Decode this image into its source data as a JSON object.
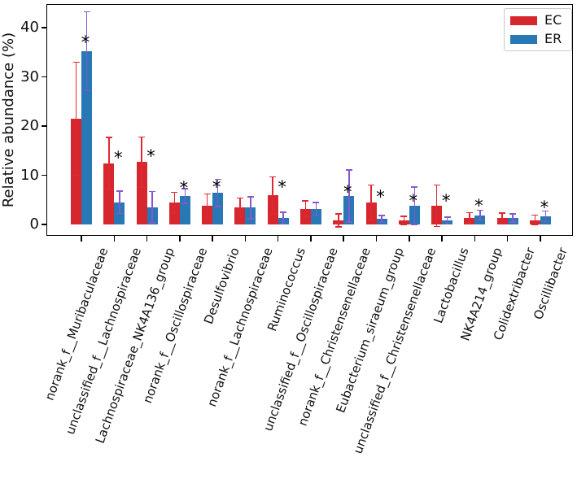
{
  "chart_data": {
    "type": "bar",
    "title": "",
    "xlabel": "",
    "ylabel": "Relative abundance (%)",
    "ylim": [
      -2.3,
      44.8
    ],
    "yticks": [
      0,
      10,
      20,
      30,
      40
    ],
    "grid": false,
    "legend_position": "upper right",
    "significance_marker": "*",
    "categories": [
      "norank_f__Muribaculaceae",
      "unclassified_f__Lachnospiraceae",
      "Lachnospiraceae_NK4A136_group",
      "norank_f__Oscillospiraceae",
      "Desulfovibrio",
      "norank_f__Lachnospiraceae",
      "Ruminococcus",
      "unclassified_f__Oscillospiraceae",
      "norank_f__Christensenellaceae",
      "Eubacterium_siraeum_group",
      "unclassified_f__Christensenellaceae",
      "Lactobacillus",
      "NK4A214_group",
      "Colidextribacter",
      "Oscillibacter"
    ],
    "series": [
      {
        "name": "EC",
        "color": "#d7272e",
        "errorbar_color": "#e02832",
        "values": [
          21.5,
          12.4,
          12.7,
          4.4,
          3.8,
          3.5,
          5.9,
          3.2,
          0.8,
          4.4,
          0.8,
          3.8,
          1.3,
          1.3,
          0.9
        ],
        "errors": [
          11.5,
          5.3,
          5.1,
          2.1,
          2.4,
          1.9,
          3.8,
          1.6,
          1.3,
          3.6,
          0.9,
          4.2,
          1.1,
          1.0,
          1.0
        ]
      },
      {
        "name": "ER",
        "color": "#2878b5",
        "errorbar_color": "#8757d1",
        "values": [
          35.2,
          4.5,
          3.5,
          5.8,
          6.4,
          3.4,
          1.3,
          3.2,
          5.8,
          1.1,
          3.8,
          0.8,
          1.9,
          1.3,
          1.65
        ],
        "errors": [
          8.0,
          2.3,
          3.2,
          1.5,
          2.8,
          2.2,
          1.2,
          1.3,
          5.3,
          0.7,
          3.8,
          0.7,
          1.0,
          0.8,
          1.1
        ]
      }
    ],
    "significant": [
      true,
      true,
      true,
      true,
      true,
      false,
      true,
      false,
      true,
      true,
      true,
      true,
      true,
      false,
      true
    ],
    "asterisk_y_percent": [
      37.4,
      13.9,
      14.2,
      7.7,
      8.0,
      null,
      7.9,
      null,
      7.0,
      6.0,
      5.1,
      5.1,
      4.1,
      null,
      3.8
    ]
  }
}
